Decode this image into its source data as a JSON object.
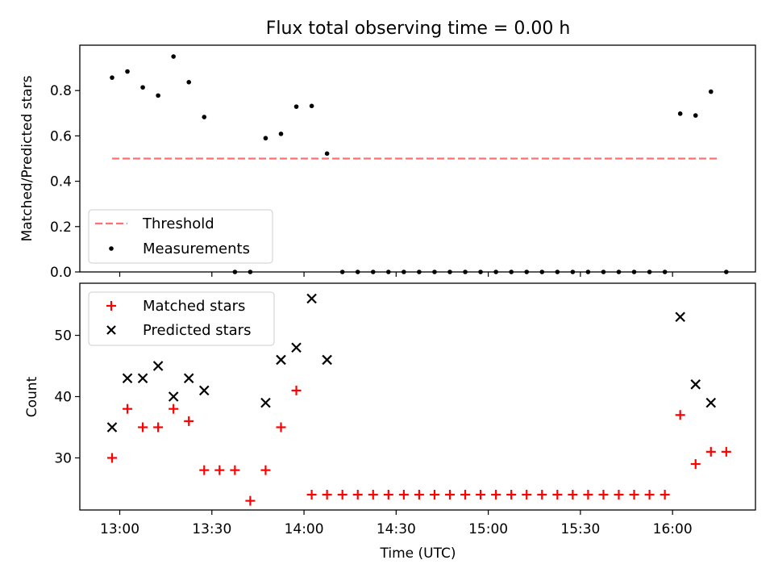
{
  "chart_data": [
    {
      "type": "scatter",
      "title": "Flux total observing time = 0.00 h",
      "xlabel": "",
      "ylabel": "Matched/Predicted stars",
      "xlim_minutes": [
        -13,
        207
      ],
      "ylim": [
        0,
        1.0
      ],
      "yticks": [
        0.0,
        0.2,
        0.4,
        0.6,
        0.8
      ],
      "ytick_labels": [
        "0.0",
        "0.2",
        "0.4",
        "0.6",
        "0.8"
      ],
      "legend_position": "lower-left",
      "series": [
        {
          "name": "Threshold",
          "kind": "dashed-line",
          "color": "#ff7070",
          "x_minutes": [
            -2.5,
            195
          ],
          "values": [
            0.5,
            0.5
          ]
        },
        {
          "name": "Measurements",
          "kind": "dots",
          "color": "#000000",
          "x_minutes": [
            -2.5,
            2.5,
            7.5,
            12.5,
            17.5,
            22.5,
            27.5,
            32.5,
            37.5,
            42.5,
            47.5,
            52.5,
            57.5,
            62.5,
            67.5,
            72.5,
            77.5,
            82.5,
            87.5,
            92.5,
            97.5,
            102.5,
            107.5,
            112.5,
            117.5,
            122.5,
            127.5,
            132.5,
            137.5,
            142.5,
            147.5,
            152.5,
            157.5,
            162.5,
            167.5,
            172.5,
            177.5,
            182.5,
            187.5,
            192.5,
            197.5
          ],
          "values": [
            0.857,
            0.884,
            0.814,
            0.778,
            0.95,
            0.837,
            0.683,
            null,
            0.0,
            0.0,
            0.59,
            0.609,
            0.729,
            0.732,
            0.522,
            0.0,
            0.0,
            0.0,
            0.0,
            0.0,
            0.0,
            0.0,
            0.0,
            0.0,
            0.0,
            0.0,
            0.0,
            0.0,
            0.0,
            0.0,
            0.0,
            0.0,
            0.0,
            0.0,
            0.0,
            0.0,
            0.0,
            0.698,
            0.69,
            0.795,
            0.0
          ]
        }
      ]
    },
    {
      "type": "scatter",
      "title": "",
      "xlabel": "Time (UTC)",
      "ylabel": "Count",
      "xlim_minutes": [
        -13,
        207
      ],
      "ylim": [
        21.5,
        58.5
      ],
      "yticks": [
        30,
        40,
        50
      ],
      "ytick_labels": [
        "30",
        "40",
        "50"
      ],
      "x_origin_label": "13:00",
      "xticks_minutes": [
        0,
        30,
        60,
        90,
        120,
        150,
        180
      ],
      "xtick_labels": [
        "13:00",
        "13:30",
        "14:00",
        "14:30",
        "15:00",
        "15:30",
        "16:00"
      ],
      "legend_position": "upper-left",
      "series": [
        {
          "name": "Matched stars",
          "kind": "plus",
          "color": "#ff0000",
          "x_minutes": [
            -2.5,
            2.5,
            7.5,
            12.5,
            17.5,
            22.5,
            27.5,
            32.5,
            37.5,
            42.5,
            47.5,
            52.5,
            57.5,
            62.5,
            67.5,
            72.5,
            77.5,
            82.5,
            87.5,
            92.5,
            97.5,
            102.5,
            107.5,
            112.5,
            117.5,
            122.5,
            127.5,
            132.5,
            137.5,
            142.5,
            147.5,
            152.5,
            157.5,
            162.5,
            167.5,
            172.5,
            177.5,
            182.5,
            187.5,
            192.5,
            197.5
          ],
          "values": [
            30,
            38,
            35,
            35,
            38,
            36,
            28,
            28,
            28,
            23,
            28,
            35,
            41,
            24,
            24,
            24,
            24,
            24,
            24,
            24,
            24,
            24,
            24,
            24,
            24,
            24,
            24,
            24,
            24,
            24,
            24,
            24,
            24,
            24,
            24,
            24,
            24,
            37,
            29,
            31,
            31
          ]
        },
        {
          "name": "Predicted stars",
          "kind": "cross",
          "color": "#000000",
          "x_minutes": [
            -2.5,
            2.5,
            7.5,
            12.5,
            17.5,
            22.5,
            27.5,
            47.5,
            52.5,
            57.5,
            62.5,
            67.5,
            182.5,
            187.5,
            192.5
          ],
          "values": [
            35,
            43,
            43,
            45,
            40,
            43,
            41,
            39,
            46,
            48,
            56,
            46,
            53,
            42,
            39
          ]
        }
      ]
    }
  ]
}
